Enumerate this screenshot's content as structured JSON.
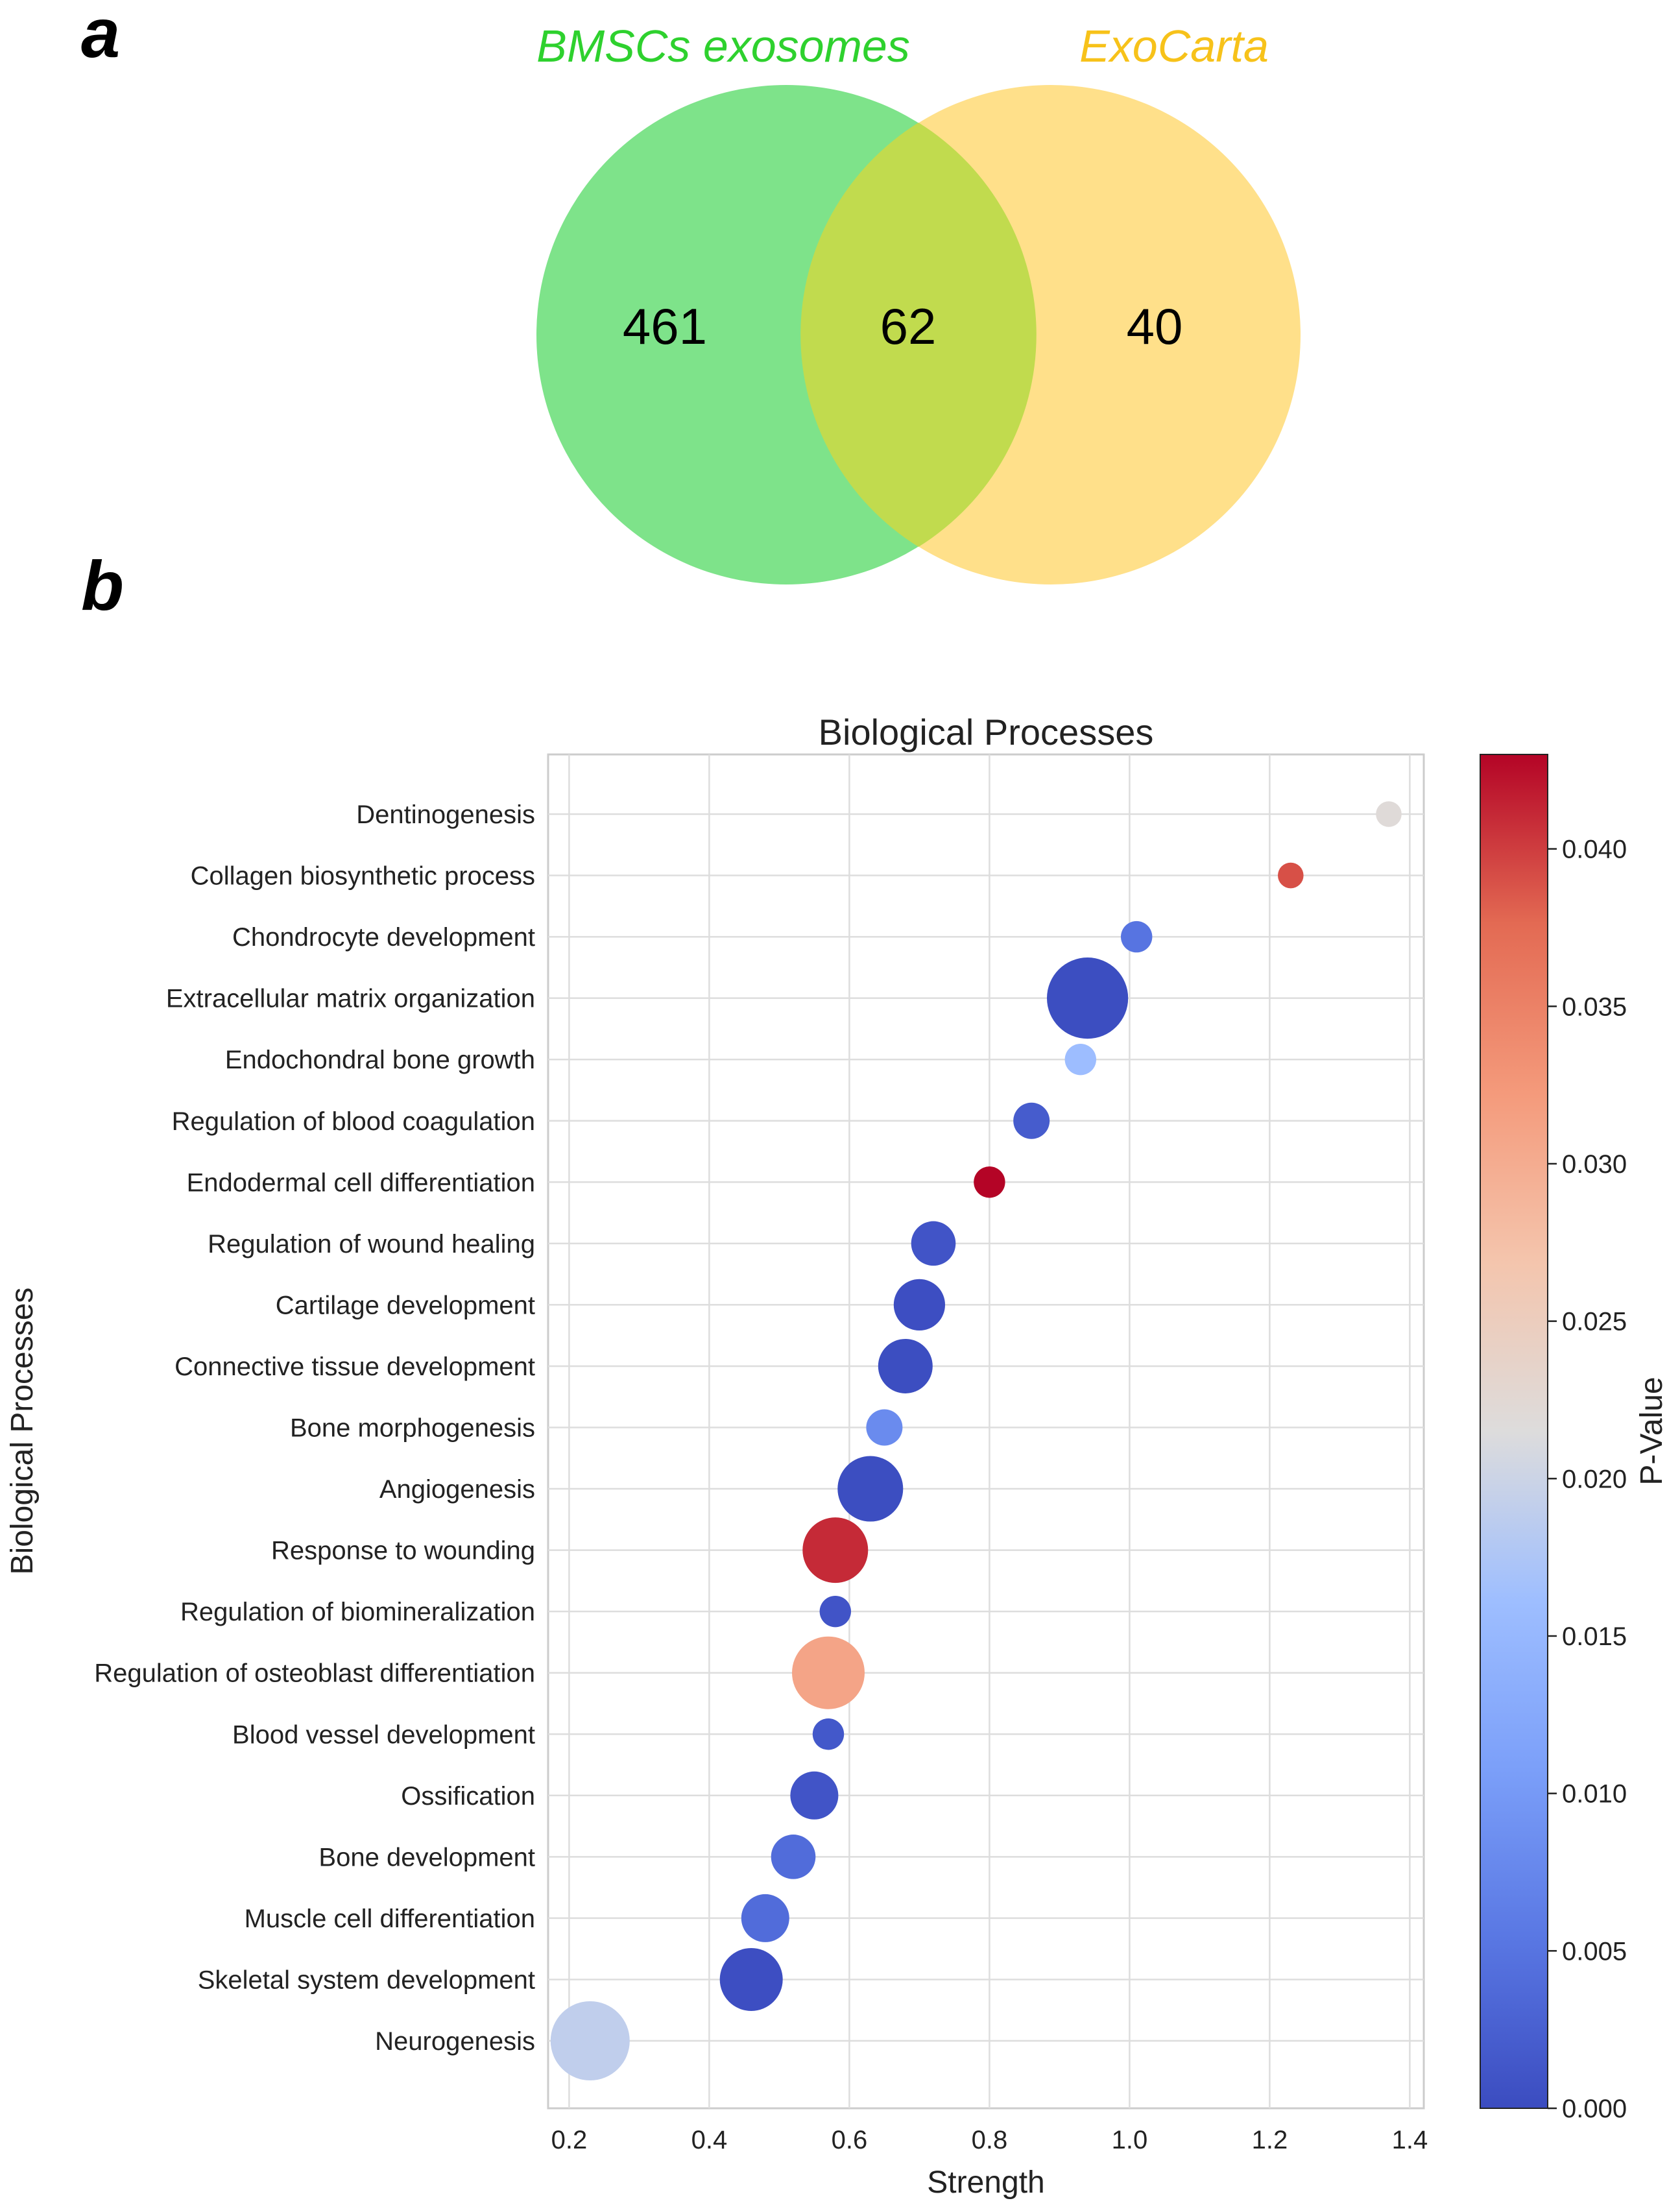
{
  "panel_a": {
    "label": "a",
    "venn": {
      "set_a_name": "BMSCs exosomes",
      "set_b_name": "ExoCarta",
      "only_a": "461",
      "overlap": "62",
      "only_b": "40",
      "color_a": "#7ee38a",
      "color_b": "#ffe08a",
      "color_overlap": "#c1db4e",
      "label_color_a": "#2ed12e",
      "label_color_b": "#f7c21a"
    }
  },
  "panel_b": {
    "label": "b"
  },
  "chart_data": {
    "type": "scatter",
    "title": "Biological Processes",
    "xlabel": "Strength",
    "ylabel": "Biological Processes",
    "colorbar_label": "P-Value",
    "xlim": [
      0.17,
      1.42
    ],
    "xticks": [
      0.2,
      0.4,
      0.6,
      0.8,
      1.0,
      1.2,
      1.4
    ],
    "xtick_labels": [
      "0.2",
      "0.4",
      "0.6",
      "0.8",
      "1.0",
      "1.2",
      "1.4"
    ],
    "clim": [
      0.0,
      0.043
    ],
    "cbar_ticks": [
      0.0,
      0.005,
      0.01,
      0.015,
      0.02,
      0.025,
      0.03,
      0.035,
      0.04
    ],
    "cbar_tick_labels": [
      "0.000",
      "0.005",
      "0.010",
      "0.015",
      "0.020",
      "0.025",
      "0.030",
      "0.035",
      "0.040"
    ],
    "colormap": "coolwarm",
    "grid": true,
    "points": [
      {
        "term": "Dentinogenesis",
        "strength": 1.37,
        "pvalue": 0.022,
        "size": 2
      },
      {
        "term": "Collagen biosynthetic process",
        "strength": 1.23,
        "pvalue": 0.039,
        "size": 2
      },
      {
        "term": "Chondrocyte development",
        "strength": 1.01,
        "pvalue": 0.005,
        "size": 3
      },
      {
        "term": "Extracellular matrix organization",
        "strength": 0.94,
        "pvalue": 0.0002,
        "size": 20
      },
      {
        "term": "Endochondral bone growth",
        "strength": 0.93,
        "pvalue": 0.016,
        "size": 3
      },
      {
        "term": "Regulation of blood coagulation",
        "strength": 0.86,
        "pvalue": 0.002,
        "size": 4
      },
      {
        "term": "Endodermal cell differentiation",
        "strength": 0.8,
        "pvalue": 0.043,
        "size": 3
      },
      {
        "term": "Regulation of wound healing",
        "strength": 0.72,
        "pvalue": 0.001,
        "size": 6
      },
      {
        "term": "Cartilage development",
        "strength": 0.7,
        "pvalue": 0.0003,
        "size": 8
      },
      {
        "term": "Connective tissue development",
        "strength": 0.68,
        "pvalue": 0.0002,
        "size": 9
      },
      {
        "term": "Bone morphogenesis",
        "strength": 0.65,
        "pvalue": 0.008,
        "size": 4
      },
      {
        "term": "Angiogenesis",
        "strength": 0.63,
        "pvalue": 0.0002,
        "size": 13
      },
      {
        "term": "Response to wounding",
        "strength": 0.58,
        "pvalue": 0.041,
        "size": 13
      },
      {
        "term": "Regulation of biomineralization",
        "strength": 0.58,
        "pvalue": 0.001,
        "size": 3
      },
      {
        "term": "Regulation of osteoblast differentiation",
        "strength": 0.57,
        "pvalue": 0.031,
        "size": 16
      },
      {
        "term": "Blood vessel development",
        "strength": 0.57,
        "pvalue": 0.0015,
        "size": 3
      },
      {
        "term": "Ossification",
        "strength": 0.55,
        "pvalue": 0.001,
        "size": 7
      },
      {
        "term": "Bone development",
        "strength": 0.52,
        "pvalue": 0.004,
        "size": 6
      },
      {
        "term": "Muscle cell differentiation",
        "strength": 0.48,
        "pvalue": 0.004,
        "size": 7
      },
      {
        "term": "Skeletal system development",
        "strength": 0.46,
        "pvalue": 0.0003,
        "size": 12
      },
      {
        "term": "Neurogenesis",
        "strength": 0.23,
        "pvalue": 0.019,
        "size": 19
      }
    ]
  }
}
